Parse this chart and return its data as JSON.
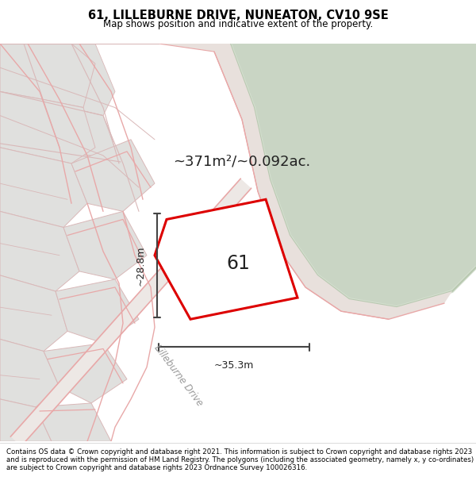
{
  "title_line1": "61, LILLEBURNE DRIVE, NUNEATON, CV10 9SE",
  "title_line2": "Map shows position and indicative extent of the property.",
  "area_label": "~371m²/~0.092ac.",
  "plot_number": "61",
  "dim_width": "~35.3m",
  "dim_height": "~28.8m",
  "road_label": "Lilleburne Drive",
  "footer_text": "Contains OS data © Crown copyright and database right 2021. This information is subject to Crown copyright and database rights 2023 and is reproduced with the permission of HM Land Registry. The polygons (including the associated geometry, namely x, y co-ordinates) are subject to Crown copyright and database rights 2023 Ordnance Survey 100026316.",
  "bg_color": "#ffffff",
  "map_bg": "#f2f0ed",
  "green_area_color": "#c9d5c4",
  "plot_fill": "#ffffff",
  "plot_edge": "#dd0000",
  "boundary_color": "#e8a8a8",
  "dim_line_color": "#444444",
  "figsize": [
    6.0,
    6.25
  ],
  "dpi": 100
}
